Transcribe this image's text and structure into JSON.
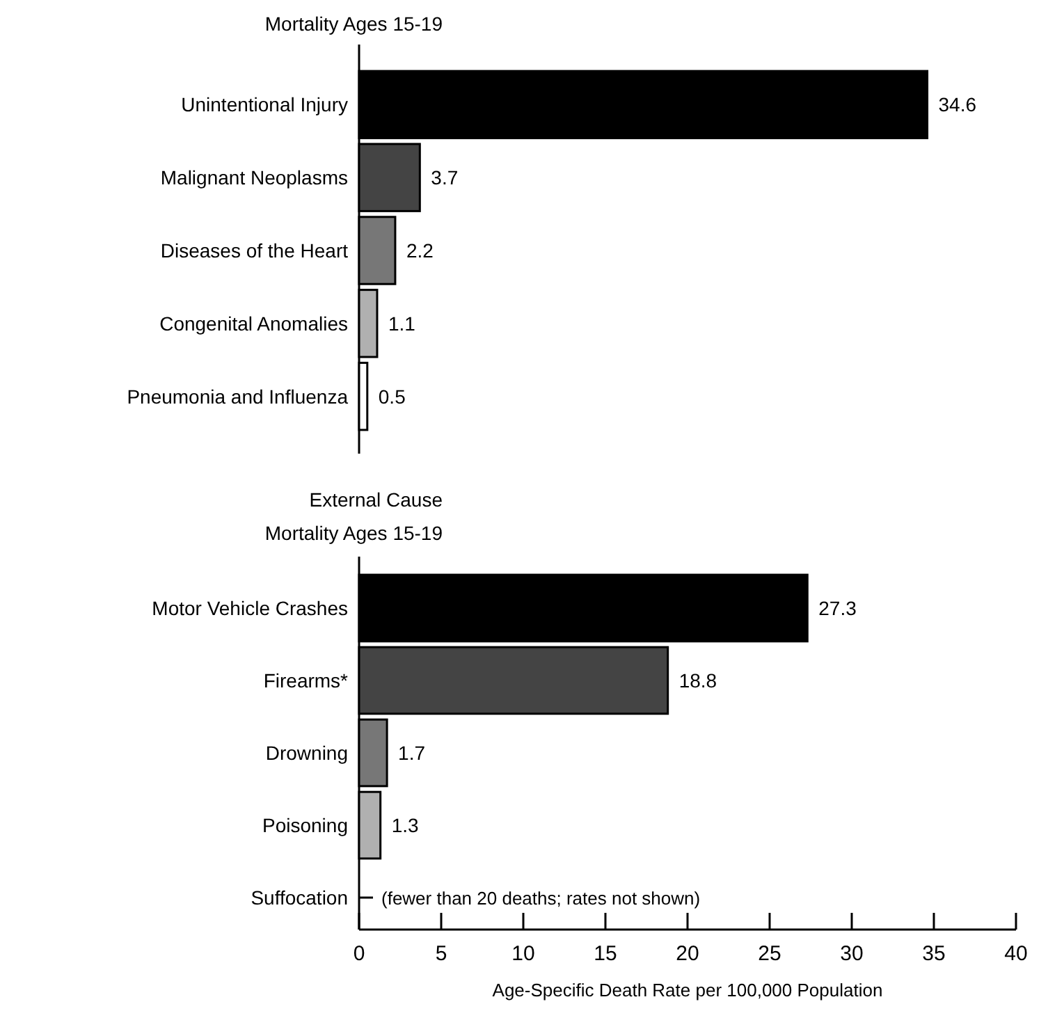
{
  "chart_data": [
    {
      "type": "bar",
      "orientation": "horizontal",
      "title": "Mortality Ages 15-19",
      "categories": [
        "Unintentional Injury",
        "Malignant Neoplasms",
        "Diseases of the Heart",
        "Congenital Anomalies",
        "Pneumonia and Influenza"
      ],
      "values": [
        34.6,
        3.7,
        2.2,
        1.1,
        0.5
      ],
      "colors": [
        "#000000",
        "#444444",
        "#777777",
        "#b0b0b0",
        "#ffffff"
      ],
      "data_labels": true,
      "xlim": [
        0,
        40
      ],
      "tick_labels": "y"
    },
    {
      "type": "bar",
      "orientation": "horizontal",
      "title": "External Cause",
      "subtitle": "Mortality Ages 15-19",
      "categories": [
        "Motor Vehicle Crashes",
        "Firearms*",
        "Drowning",
        "Poisoning",
        "Suffocation"
      ],
      "values": [
        27.3,
        18.8,
        1.7,
        1.3,
        null
      ],
      "colors": [
        "#000000",
        "#444444",
        "#777777",
        "#b0b0b0",
        null
      ],
      "data_labels": true,
      "xlim": [
        0,
        40
      ],
      "xticks": [
        0,
        5,
        10,
        15,
        20,
        25,
        30,
        35,
        40
      ],
      "xlabel": "Age-Specific Death Rate per 100,000 Population",
      "annotations": [
        "(fewer than 20 deaths; rates not shown)"
      ]
    }
  ]
}
